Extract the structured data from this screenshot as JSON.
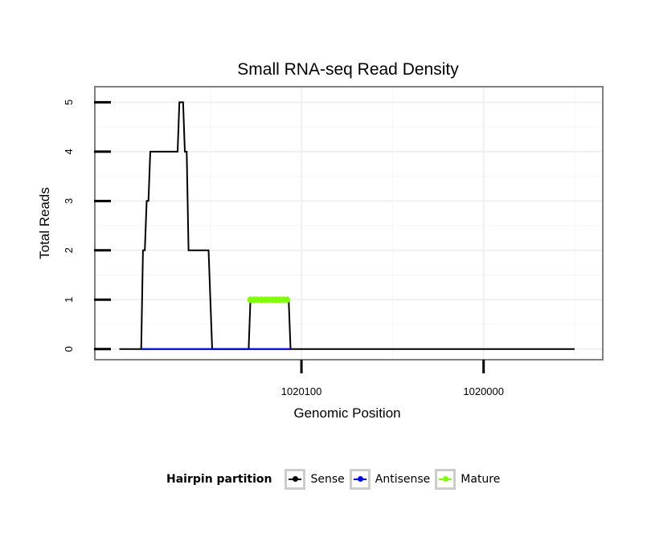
{
  "chart_data": {
    "type": "line",
    "title": "Small RNA-seq Read Density",
    "xlabel": "Genomic Position",
    "ylabel": "Total Reads",
    "x_reversed": true,
    "xlim": [
      1020213,
      1019935
    ],
    "ylim": [
      -0.2,
      5.3
    ],
    "y_ticks": [
      0,
      1,
      2,
      3,
      4,
      5
    ],
    "x_ticks": [
      {
        "value": 1020100,
        "label": "1020100"
      },
      {
        "value": 1020000,
        "label": "1020000"
      }
    ],
    "grid": true,
    "series": [
      {
        "name": "Sense",
        "color": "#000000",
        "points": [
          [
            1020200,
            0
          ],
          [
            1020188,
            0
          ],
          [
            1020187,
            2
          ],
          [
            1020186,
            2
          ],
          [
            1020185,
            3
          ],
          [
            1020184,
            3
          ],
          [
            1020183,
            4
          ],
          [
            1020168,
            4
          ],
          [
            1020167,
            5
          ],
          [
            1020165,
            5
          ],
          [
            1020164,
            4
          ],
          [
            1020163,
            4
          ],
          [
            1020162,
            2
          ],
          [
            1020151,
            2
          ],
          [
            1020149,
            0
          ],
          [
            1020129,
            0
          ],
          [
            1020128,
            1
          ],
          [
            1020107,
            1
          ],
          [
            1020106,
            0
          ],
          [
            1019950,
            0
          ]
        ]
      },
      {
        "name": "Antisense",
        "color": "#0000ff",
        "points": [
          [
            1020188,
            0
          ],
          [
            1020106,
            0
          ]
        ]
      },
      {
        "name": "Mature",
        "color": "#7fff00",
        "points": [
          [
            1020128,
            1
          ],
          [
            1020126,
            1
          ],
          [
            1020124,
            1
          ],
          [
            1020122,
            1
          ],
          [
            1020120,
            1
          ],
          [
            1020118,
            1
          ],
          [
            1020116,
            1
          ],
          [
            1020114,
            1
          ],
          [
            1020112,
            1
          ],
          [
            1020110,
            1
          ],
          [
            1020108,
            1
          ]
        ]
      }
    ],
    "legend": {
      "title": "Hairpin partition",
      "position": "bottom",
      "items": [
        {
          "label": "Sense",
          "color": "#000000"
        },
        {
          "label": "Antisense",
          "color": "#0000ff"
        },
        {
          "label": "Mature",
          "color": "#7fff00"
        }
      ]
    }
  }
}
